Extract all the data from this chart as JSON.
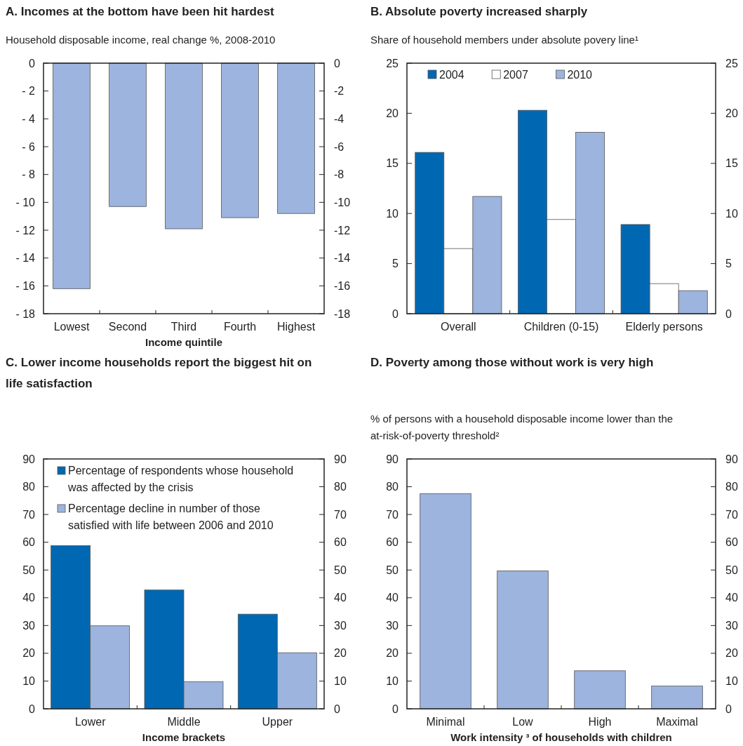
{
  "chart_data": [
    {
      "type": "bar",
      "title": "A. Incomes at the bottom have been hit hardest",
      "subtitle": "Household disposable income, real change %, 2008-2010",
      "xlabel": "Income quintile",
      "categories": [
        "Lowest",
        "Second",
        "Third",
        "Fourth",
        "Highest"
      ],
      "color": "#9cb4de",
      "values": [
        -16.2,
        -10.3,
        -11.9,
        -11.1,
        -10.8
      ],
      "ylim": [
        -18,
        0
      ],
      "yticks": [
        0,
        {
          "value": -2,
          "label": "- 2"
        },
        {
          "value": -4,
          "label": "- 4"
        },
        {
          "value": -6,
          "label": "- 6"
        },
        {
          "value": -8,
          "label": "- 8"
        },
        {
          "value": -10,
          "label": "- 10"
        },
        {
          "value": -12,
          "label": "- 12"
        },
        {
          "value": -14,
          "label": "- 14"
        },
        {
          "value": -16,
          "label": "- 16"
        },
        {
          "value": -18,
          "label": "- 18"
        }
      ],
      "y2lim": [
        -18,
        0
      ],
      "y2ticks": [
        0,
        -2,
        -4,
        -6,
        -8,
        -10,
        -12,
        -14,
        -16,
        -18
      ]
    },
    {
      "type": "bar",
      "title": "B. Absolute poverty increased sharply",
      "subtitle": "Share of household members under absolute povery line¹",
      "categories": [
        "Overall",
        "Children (0-15)",
        "Elderly persons"
      ],
      "series": [
        {
          "name": "2004",
          "color": "#0068b3",
          "values": [
            16.1,
            20.3,
            8.9
          ]
        },
        {
          "name": "2007",
          "color": "#ffffff",
          "values": [
            6.5,
            9.4,
            3.0
          ]
        },
        {
          "name": "2010",
          "color": "#9cb4de",
          "values": [
            11.7,
            18.1,
            2.3
          ]
        }
      ],
      "ylim": [
        0,
        25
      ],
      "yticks": [
        0,
        5,
        10,
        15,
        20,
        25
      ],
      "y2lim": [
        0,
        25
      ],
      "y2ticks": [
        0,
        5,
        10,
        15,
        20,
        25
      ],
      "legend": "top left"
    },
    {
      "type": "bar",
      "title": "C. Lower income households report the biggest hit on life satisfaction",
      "xlabel": "Income brackets",
      "categories": [
        "Lower",
        "Middle",
        "Upper"
      ],
      "series": [
        {
          "name": "Percentage of respondents whose household was affected by the crisis",
          "color": "#0068b3",
          "values": [
            58.8,
            42.8,
            34.1
          ]
        },
        {
          "name": "Percentage decline in number of those satisfied with life between 2006 and 2010",
          "color": "#9cb4de",
          "values": [
            29.9,
            9.8,
            20.2
          ]
        }
      ],
      "ylim": [
        0,
        90
      ],
      "yticks": [
        0,
        10,
        20,
        30,
        40,
        50,
        60,
        70,
        80,
        90
      ],
      "y2lim": [
        0,
        90
      ],
      "y2ticks": [
        0,
        10,
        20,
        30,
        40,
        50,
        60,
        70,
        80,
        90
      ],
      "legend": "top left"
    },
    {
      "type": "bar",
      "title": "D. Poverty among those without work is very high",
      "subtitle": "% of persons with a household disposable income lower than the at-risk-of-poverty threshold²",
      "xlabel": "Work intensity ³ of households with children",
      "categories": [
        "Minimal",
        "Low",
        "High",
        "Maximal"
      ],
      "color": "#9cb4de",
      "values": [
        77.5,
        49.7,
        13.7,
        8.2
      ],
      "ylim": [
        0,
        90
      ],
      "yticks": [
        0,
        10,
        20,
        30,
        40,
        50,
        60,
        70,
        80,
        90
      ],
      "y2lim": [
        0,
        90
      ],
      "y2ticks": [
        0,
        10,
        20,
        30,
        40,
        50,
        60,
        70,
        80,
        90
      ]
    }
  ]
}
